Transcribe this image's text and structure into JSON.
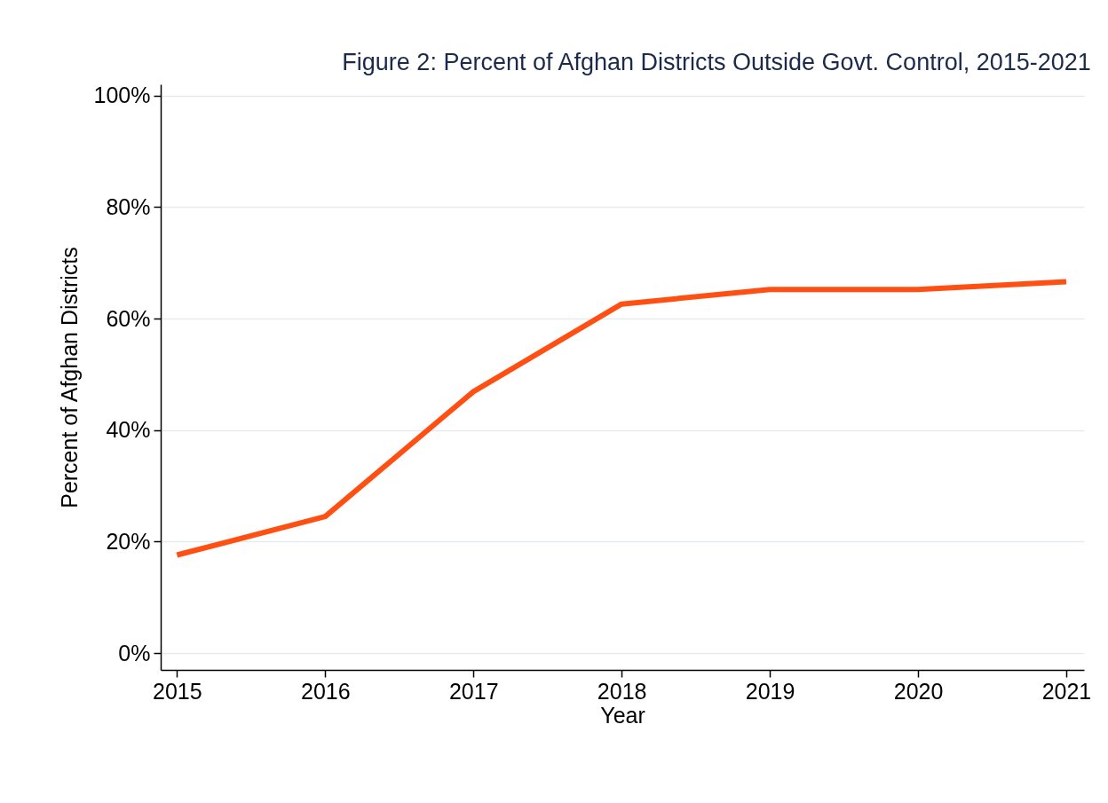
{
  "chart_data": {
    "type": "line",
    "title": "Figure 2: Percent of Afghan Districts Outside Govt. Control, 2015-2021",
    "xlabel": "Year",
    "ylabel": "Percent of Afghan Districts",
    "x": [
      2015,
      2016,
      2017,
      2018,
      2019,
      2020,
      2021
    ],
    "series": [
      {
        "color": "#ff4f12",
        "values": [
          17.6,
          24.5,
          46.9,
          62.6,
          65.2,
          65.2,
          66.6
        ]
      }
    ],
    "xlim": [
      2014.89,
      2021.12
    ],
    "xticks": [
      2015,
      2016,
      2017,
      2018,
      2019,
      2020,
      2021
    ],
    "ylim": [
      -3,
      102
    ],
    "yticks": [
      {
        "value": 0,
        "label": "0%"
      },
      {
        "value": 20,
        "label": "20%"
      },
      {
        "value": 40,
        "label": "40%"
      },
      {
        "value": 60,
        "label": "60%"
      },
      {
        "value": 80,
        "label": "80%"
      },
      {
        "value": 100,
        "label": "100%"
      }
    ],
    "grid": "y",
    "marker": "none",
    "line_style": "solid"
  }
}
